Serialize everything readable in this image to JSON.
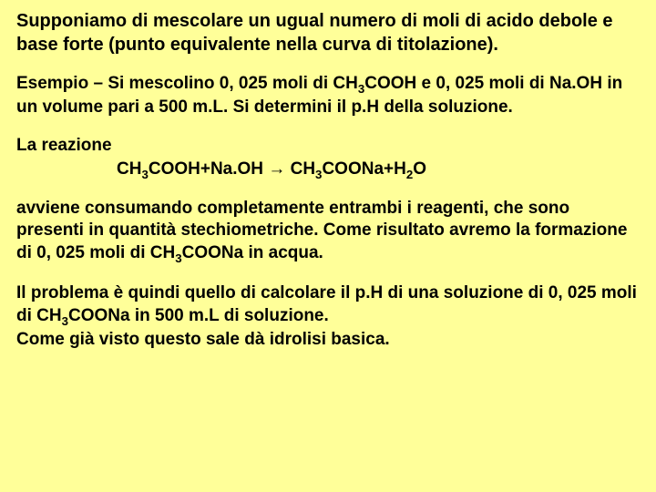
{
  "background_color": "#ffff99",
  "text_color": "#000000",
  "font_family": "Comic Sans MS",
  "intro": {
    "text": "Supponiamo di mescolare un ugual numero di moli di acido debole e base forte (punto equivalente nella curva di titolazione).",
    "fontsize": 20,
    "fontweight": "bold"
  },
  "example": {
    "prefix": "Esempio – Si mescolino 0, 025 moli di CH",
    "sub1": "3",
    "mid1": "COOH e 0, 025 moli di Na.OH in un volume pari a 500 m.L. Si determini il p.H della soluzione.",
    "fontsize": 19,
    "fontweight": "bold"
  },
  "reaction_label": "La reazione",
  "equation": {
    "lhs_pre": "CH",
    "lhs_sub1": "3",
    "lhs_mid": "COOH+Na.OH ",
    "arrow": "→",
    "rhs_pre": " CH",
    "rhs_sub1": "3",
    "rhs_mid": "COONa+H",
    "rhs_sub2": "2",
    "rhs_end": "O"
  },
  "explanation": {
    "pre": "avviene consumando completamente entrambi i reagenti, che sono presenti in quantità stechiometriche. Come risultato avremo la formazione di 0, 025 moli di CH",
    "sub1": "3",
    "post": "COONa in acqua."
  },
  "conclusion": {
    "pre": "Il problema è quindi quello di calcolare il p.H di una soluzione di 0, 025 moli di CH",
    "sub1": "3",
    "post": "COONa in 500 m.L di soluzione.",
    "line2": "Come già visto questo sale dà idrolisi basica."
  }
}
